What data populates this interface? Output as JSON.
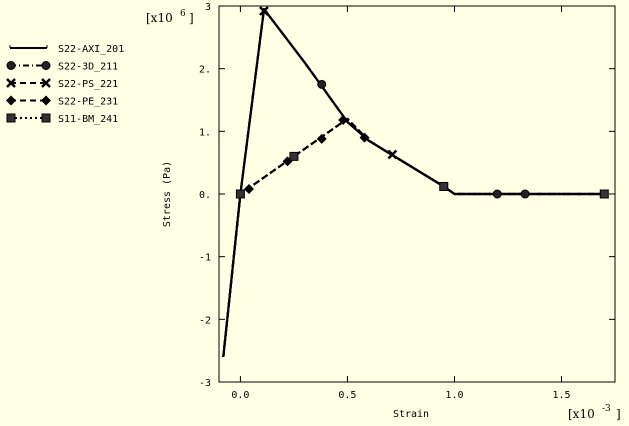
{
  "chart_data": {
    "type": "line",
    "title": "",
    "xlabel": "Strain",
    "ylabel": "Stress (Pa)",
    "x_multiplier": "[x10",
    "x_multiplier_exp": "-3",
    "x_multiplier_close": "]",
    "y_multiplier": "[x10",
    "y_multiplier_exp": "6",
    "y_multiplier_close": "]",
    "xlim": [
      -0.1,
      1.75
    ],
    "ylim": [
      -3,
      3
    ],
    "x_ticks": [
      0.0,
      0.5,
      1.0,
      1.5
    ],
    "x_tick_labels": [
      "0.0",
      "0.5",
      "1.0",
      "1.5"
    ],
    "y_ticks": [
      -3,
      -2,
      -1,
      0,
      1,
      2,
      3
    ],
    "y_tick_labels": [
      "-3",
      "-2",
      "-1",
      "0.",
      "1.",
      "2.",
      "3"
    ],
    "legend_position": "top-left",
    "series": [
      {
        "name": "S22-AXI_201",
        "marker": "none",
        "dash": "solid",
        "points": [
          [
            -0.08,
            -2.6
          ],
          [
            0.0,
            0.0
          ],
          [
            0.11,
            2.95
          ],
          [
            0.3,
            2.1
          ],
          [
            0.5,
            1.15
          ],
          [
            0.6,
            0.85
          ],
          [
            0.95,
            0.12
          ],
          [
            1.0,
            0.0
          ],
          [
            1.7,
            0.0
          ]
        ],
        "markers_at": []
      },
      {
        "name": "S22-3D_211",
        "marker": "circle",
        "dash": "dashdot",
        "points": [
          [
            -0.08,
            -2.6
          ],
          [
            0.0,
            0.0
          ],
          [
            0.11,
            2.95
          ],
          [
            0.3,
            2.1
          ],
          [
            0.5,
            1.15
          ],
          [
            0.6,
            0.85
          ],
          [
            0.95,
            0.12
          ],
          [
            1.0,
            0.0
          ],
          [
            1.7,
            0.0
          ]
        ],
        "markers_at": [
          [
            0.38,
            1.75
          ],
          [
            1.2,
            0.0
          ],
          [
            1.33,
            0.0
          ]
        ]
      },
      {
        "name": "S22-PS_221",
        "marker": "x",
        "dash": "dashed",
        "points": [
          [
            -0.08,
            -2.6
          ],
          [
            0.0,
            0.0
          ],
          [
            0.11,
            2.95
          ],
          [
            0.3,
            2.1
          ],
          [
            0.5,
            1.15
          ],
          [
            0.6,
            0.85
          ],
          [
            0.95,
            0.12
          ],
          [
            1.0,
            0.0
          ],
          [
            1.7,
            0.0
          ]
        ],
        "markers_at": [
          [
            0.11,
            2.92
          ],
          [
            0.71,
            0.63
          ]
        ]
      },
      {
        "name": "S22-PE_231",
        "marker": "diamond",
        "dash": "dashed",
        "points": [
          [
            -0.08,
            -2.6
          ],
          [
            0.0,
            0.0
          ],
          [
            0.25,
            0.6
          ],
          [
            0.5,
            1.2
          ],
          [
            0.6,
            0.85
          ],
          [
            0.95,
            0.12
          ],
          [
            1.0,
            0.0
          ],
          [
            1.7,
            0.0
          ]
        ],
        "markers_at": [
          [
            0.04,
            0.08
          ],
          [
            0.22,
            0.52
          ],
          [
            0.38,
            0.88
          ],
          [
            0.48,
            1.18
          ],
          [
            0.58,
            0.9
          ]
        ]
      },
      {
        "name": "S11-BM_241",
        "marker": "square",
        "dash": "dotted",
        "points": [
          [
            -0.08,
            -2.6
          ],
          [
            0.0,
            0.0
          ],
          [
            0.25,
            0.6
          ],
          [
            0.5,
            1.2
          ],
          [
            0.6,
            0.85
          ],
          [
            0.95,
            0.12
          ],
          [
            1.0,
            0.0
          ],
          [
            1.7,
            0.0
          ]
        ],
        "markers_at": [
          [
            0.0,
            0.0
          ],
          [
            0.25,
            0.6
          ],
          [
            0.95,
            0.12
          ],
          [
            1.7,
            0.0
          ]
        ]
      }
    ]
  }
}
